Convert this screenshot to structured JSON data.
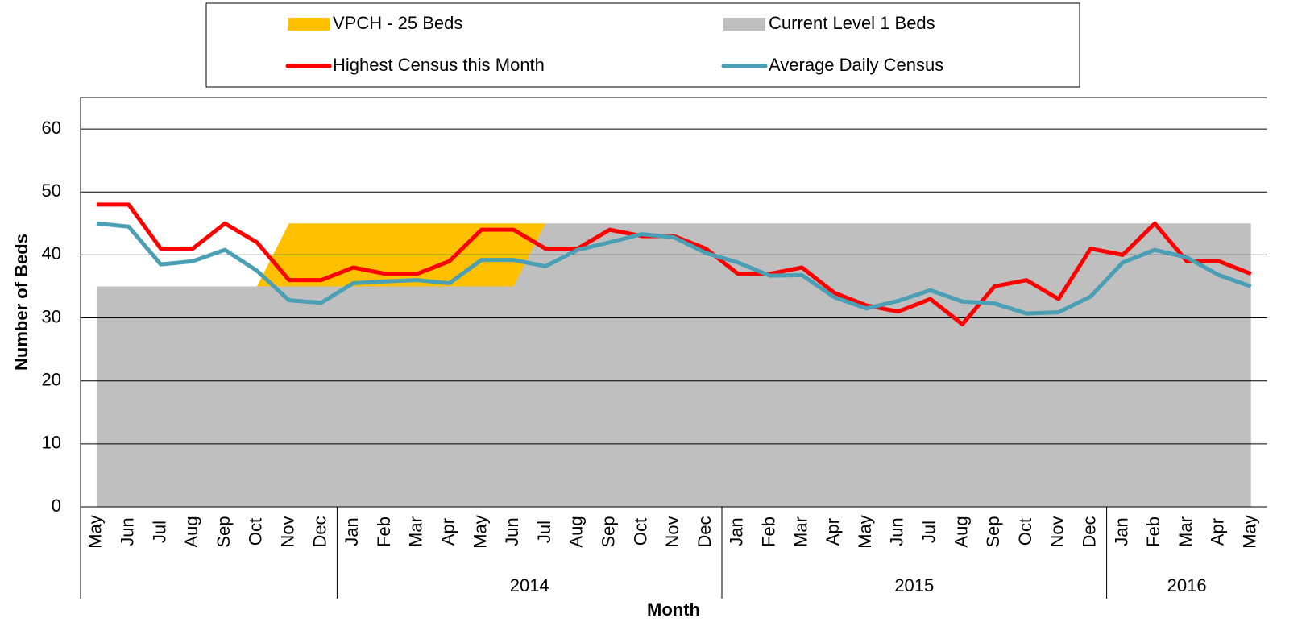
{
  "chart_data": {
    "type": "combo",
    "y_label": "Number of Beds",
    "x_label": "Month",
    "categories": [
      "May",
      "Jun",
      "Jul",
      "Aug",
      "Sep",
      "Oct",
      "Nov",
      "Dec",
      "Jan",
      "Feb",
      "Mar",
      "Apr",
      "May",
      "Jun",
      "Jul",
      "Aug",
      "Sep",
      "Oct",
      "Nov",
      "Dec",
      "Jan",
      "Feb",
      "Mar",
      "Apr",
      "May",
      "Jun",
      "Jul",
      "Aug",
      "Sep",
      "Oct",
      "Nov",
      "Dec",
      "Jan",
      "Feb",
      "Mar",
      "Apr",
      "May"
    ],
    "groups": [
      {
        "label": null,
        "count": 8
      },
      {
        "label": "2014",
        "count": 12
      },
      {
        "label": "2015",
        "count": 12
      },
      {
        "label": "2016",
        "count": 5
      }
    ],
    "series": [
      {
        "name": "VPCH - 25 Beds",
        "type": "stacked-area",
        "color": "#FFC000",
        "values": [
          0,
          0,
          0,
          0,
          0,
          0,
          10,
          10,
          10,
          10,
          10,
          10,
          10,
          10,
          0,
          0,
          0,
          0,
          0,
          0,
          0,
          0,
          0,
          0,
          0,
          0,
          0,
          0,
          0,
          0,
          0,
          0,
          0,
          0,
          0,
          0,
          0
        ]
      },
      {
        "name": "Current Level 1 Beds",
        "type": "area",
        "color": "#BFBFBF",
        "values": [
          35,
          35,
          35,
          35,
          35,
          35,
          35,
          35,
          35,
          35,
          35,
          35,
          35,
          35,
          45,
          45,
          45,
          45,
          45,
          45,
          45,
          45,
          45,
          45,
          45,
          45,
          45,
          45,
          45,
          45,
          45,
          45,
          45,
          45,
          45,
          45,
          45
        ]
      },
      {
        "name": "Highest Census this Month",
        "type": "line",
        "color": "#FF0000",
        "values": [
          48,
          48,
          41,
          41,
          45,
          42,
          36,
          36,
          38,
          37,
          37,
          39,
          44,
          44,
          41,
          41,
          44,
          43,
          43,
          41,
          37,
          37,
          38,
          34,
          32,
          31,
          33,
          29,
          35,
          36,
          33,
          41,
          40,
          45,
          39,
          39,
          37
        ]
      },
      {
        "name": "Average Daily Census",
        "type": "line",
        "color": "#4A9FB5",
        "values": [
          45,
          44.5,
          38.5,
          39,
          40.8,
          37.5,
          32.8,
          32.4,
          35.5,
          35.8,
          36,
          35.5,
          39.2,
          39.2,
          38.2,
          40.8,
          42,
          43.3,
          42.8,
          40.3,
          38.8,
          36.7,
          36.8,
          33.3,
          31.5,
          32.7,
          34.4,
          32.6,
          32.3,
          30.7,
          30.9,
          33.4,
          38.8,
          40.8,
          39.6,
          36.8,
          35
        ]
      }
    ],
    "ylim": [
      0,
      65
    ],
    "yticks": [
      0,
      10,
      20,
      30,
      40,
      50,
      60
    ],
    "grid": true,
    "legend": "top"
  }
}
